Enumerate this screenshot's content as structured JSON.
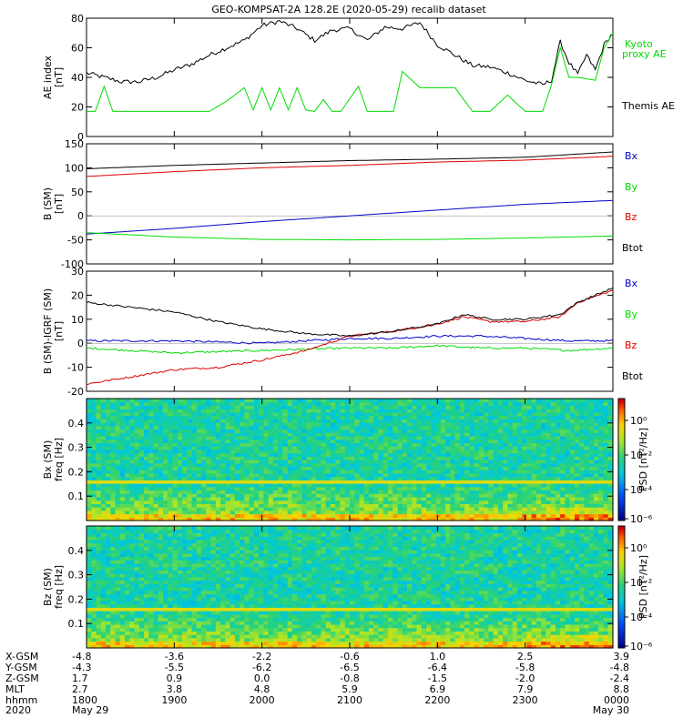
{
  "chart_data": {
    "title": "GEO-KOMPSAT-2A 128.2E (2020-05-29) recalib dataset",
    "time_range": [
      "2020-05-29 18:00",
      "2020-05-30 00:00"
    ],
    "x_hours": [
      0,
      1,
      2,
      3,
      4,
      5,
      6
    ],
    "panels": [
      {
        "type": "line",
        "ylabel": [
          "AE index",
          "[nT]"
        ],
        "ylim": [
          0,
          80
        ],
        "yticks": [
          "0",
          "20",
          "40",
          "60",
          "80"
        ],
        "series": [
          {
            "name": "Themis AE",
            "color": "#000000",
            "x": [
              0,
              0.2,
              0.4,
              0.6,
              0.8,
              1.0,
              1.2,
              1.4,
              1.6,
              1.8,
              2.0,
              2.2,
              2.4,
              2.6,
              2.8,
              3.0,
              3.2,
              3.4,
              3.6,
              3.8,
              4.0,
              4.2,
              4.4,
              4.6,
              4.8,
              5.0,
              5.2,
              5.3,
              5.4,
              5.5,
              5.6,
              5.7,
              5.8,
              5.9,
              6.0
            ],
            "y": [
              43,
              40,
              37,
              37,
              40,
              45,
              49,
              55,
              60,
              65,
              75,
              78,
              73,
              65,
              72,
              73,
              65,
              74,
              73,
              77,
              62,
              55,
              48,
              47,
              43,
              38,
              35,
              38,
              64,
              50,
              42,
              55,
              45,
              62,
              70
            ]
          },
          {
            "name": "Kyoto proxy AE",
            "color": "#00dd00",
            "x": [
              0,
              0.1,
              0.2,
              0.3,
              0.4,
              0.6,
              1.0,
              1.4,
              1.6,
              1.8,
              1.9,
              2.0,
              2.1,
              2.2,
              2.3,
              2.4,
              2.5,
              2.6,
              2.7,
              2.8,
              2.9,
              3.1,
              3.2,
              3.3,
              3.5,
              3.6,
              3.8,
              4.0,
              4.2,
              4.4,
              4.6,
              4.8,
              5.0,
              5.2,
              5.3,
              5.4,
              5.5,
              5.6,
              5.8,
              5.9,
              6.0
            ],
            "y": [
              17,
              17,
              34,
              17,
              17,
              17,
              17,
              17,
              24,
              33,
              18,
              33,
              18,
              33,
              18,
              33,
              18,
              17,
              25,
              17,
              17,
              34,
              17,
              17,
              17,
              44,
              33,
              33,
              33,
              17,
              17,
              28,
              17,
              17,
              35,
              60,
              40,
              40,
              38,
              60,
              70
            ]
          }
        ]
      },
      {
        "type": "line",
        "ylabel": [
          "B (SM)",
          "[nT]"
        ],
        "ylim": [
          -100,
          150
        ],
        "yticks": [
          "-100",
          "-50",
          "0",
          "50",
          "100",
          "150"
        ],
        "series": [
          {
            "name": "Bx",
            "color": "#0000cc",
            "x": [
              0,
              1,
              2,
              3,
              4,
              5,
              6
            ],
            "y": [
              -38,
              -26,
              -12,
              0,
              12,
              24,
              32
            ]
          },
          {
            "name": "By",
            "color": "#00dd00",
            "x": [
              0,
              1,
              2,
              3,
              4,
              5,
              6
            ],
            "y": [
              -35,
              -44,
              -49,
              -50,
              -49,
              -46,
              -42
            ]
          },
          {
            "name": "Bz",
            "color": "#dd0000",
            "x": [
              0,
              1,
              2,
              3,
              4,
              5,
              6
            ],
            "y": [
              82,
              92,
              100,
              105,
              112,
              116,
              124
            ]
          },
          {
            "name": "Btot",
            "color": "#000000",
            "x": [
              0,
              1,
              2,
              3,
              4,
              5,
              6
            ],
            "y": [
              98,
              105,
              110,
              115,
              118,
              122,
              133
            ]
          }
        ]
      },
      {
        "type": "line",
        "ylabel": [
          "B (SM)-IGRF (SM)",
          "[nT]"
        ],
        "ylim": [
          -20,
          30
        ],
        "yticks": [
          "-20",
          "-10",
          "0",
          "10",
          "20",
          "30"
        ],
        "series": [
          {
            "name": "Bx",
            "color": "#0000cc",
            "x": [
              0,
              1,
              2,
              3,
              3.5,
              4,
              4.5,
              5,
              5.5,
              6
            ],
            "y": [
              1,
              1,
              0,
              2,
              2,
              3,
              3,
              2,
              1,
              1
            ]
          },
          {
            "name": "By",
            "color": "#00dd00",
            "x": [
              0,
              1,
              2,
              3,
              3.5,
              4,
              4.5,
              5,
              5.5,
              6
            ],
            "y": [
              -2,
              -4,
              -3,
              -2,
              -2,
              -1,
              -2,
              -2,
              -3,
              -2
            ]
          },
          {
            "name": "Bz",
            "color": "#dd0000",
            "x": [
              0,
              0.5,
              1,
              1.5,
              2,
              2.5,
              3,
              3.5,
              4,
              4.3,
              4.6,
              5,
              5.4,
              5.6,
              6
            ],
            "y": [
              -17,
              -14,
              -11,
              -10,
              -7,
              -3,
              3,
              5,
              8,
              11,
              9,
              9,
              11,
              17,
              22
            ]
          },
          {
            "name": "Btot",
            "color": "#000000",
            "x": [
              0,
              0.5,
              1,
              1.5,
              2,
              2.5,
              3,
              3.5,
              4,
              4.3,
              4.6,
              5,
              5.4,
              5.6,
              6
            ],
            "y": [
              17,
              15,
              13,
              9,
              6,
              4,
              3,
              5,
              8,
              12,
              10,
              10,
              12,
              17,
              23
            ]
          }
        ]
      },
      {
        "type": "heatmap",
        "ylabel": [
          "Bx (SM)",
          "freq [Hz]"
        ],
        "ylim": [
          0,
          0.5
        ],
        "yticks": [
          "0.1",
          "0.2",
          "0.3",
          "0.4"
        ],
        "colorbar": {
          "label": "PSD [nT²/Hz]",
          "ticks": [
            "10⁰",
            "10⁻²",
            "10⁻⁴",
            "10⁻⁶"
          ]
        }
      },
      {
        "type": "heatmap",
        "ylabel": [
          "Bz (SM)",
          "freq [Hz]"
        ],
        "ylim": [
          0,
          0.5
        ],
        "yticks": [
          "0.1",
          "0.2",
          "0.3",
          "0.4"
        ],
        "colorbar": {
          "label": "PSD [nT²/Hz]",
          "ticks": [
            "10⁰",
            "10⁻²",
            "10⁻⁴",
            "10⁻⁶"
          ]
        }
      }
    ],
    "ephemeris": {
      "labels": [
        "X-GSM",
        "Y-GSM",
        "Z-GSM",
        "MLT",
        "hhmm",
        "2020"
      ],
      "columns": [
        [
          "-4.8",
          "-4.3",
          "1.7",
          "2.7",
          "1800",
          "May 29"
        ],
        [
          "-3.6",
          "-5.5",
          "0.9",
          "3.8",
          "1900",
          ""
        ],
        [
          "-2.2",
          "-6.2",
          "0.0",
          "4.8",
          "2000",
          ""
        ],
        [
          "-0.6",
          "-6.5",
          "-0.8",
          "5.9",
          "2100",
          ""
        ],
        [
          "1.0",
          "-6.4",
          "-1.5",
          "6.9",
          "2200",
          ""
        ],
        [
          "2.5",
          "-5.8",
          "-2.0",
          "7.9",
          "2300",
          ""
        ],
        [
          "3.9",
          "-4.8",
          "-2.4",
          "8.8",
          "0000",
          "May 30"
        ]
      ]
    }
  },
  "colors": {
    "themis": "#000000",
    "kyoto": "#00dd00",
    "bx": "#0000cc",
    "by": "#00dd00",
    "bz": "#dd0000",
    "btot": "#000000"
  }
}
